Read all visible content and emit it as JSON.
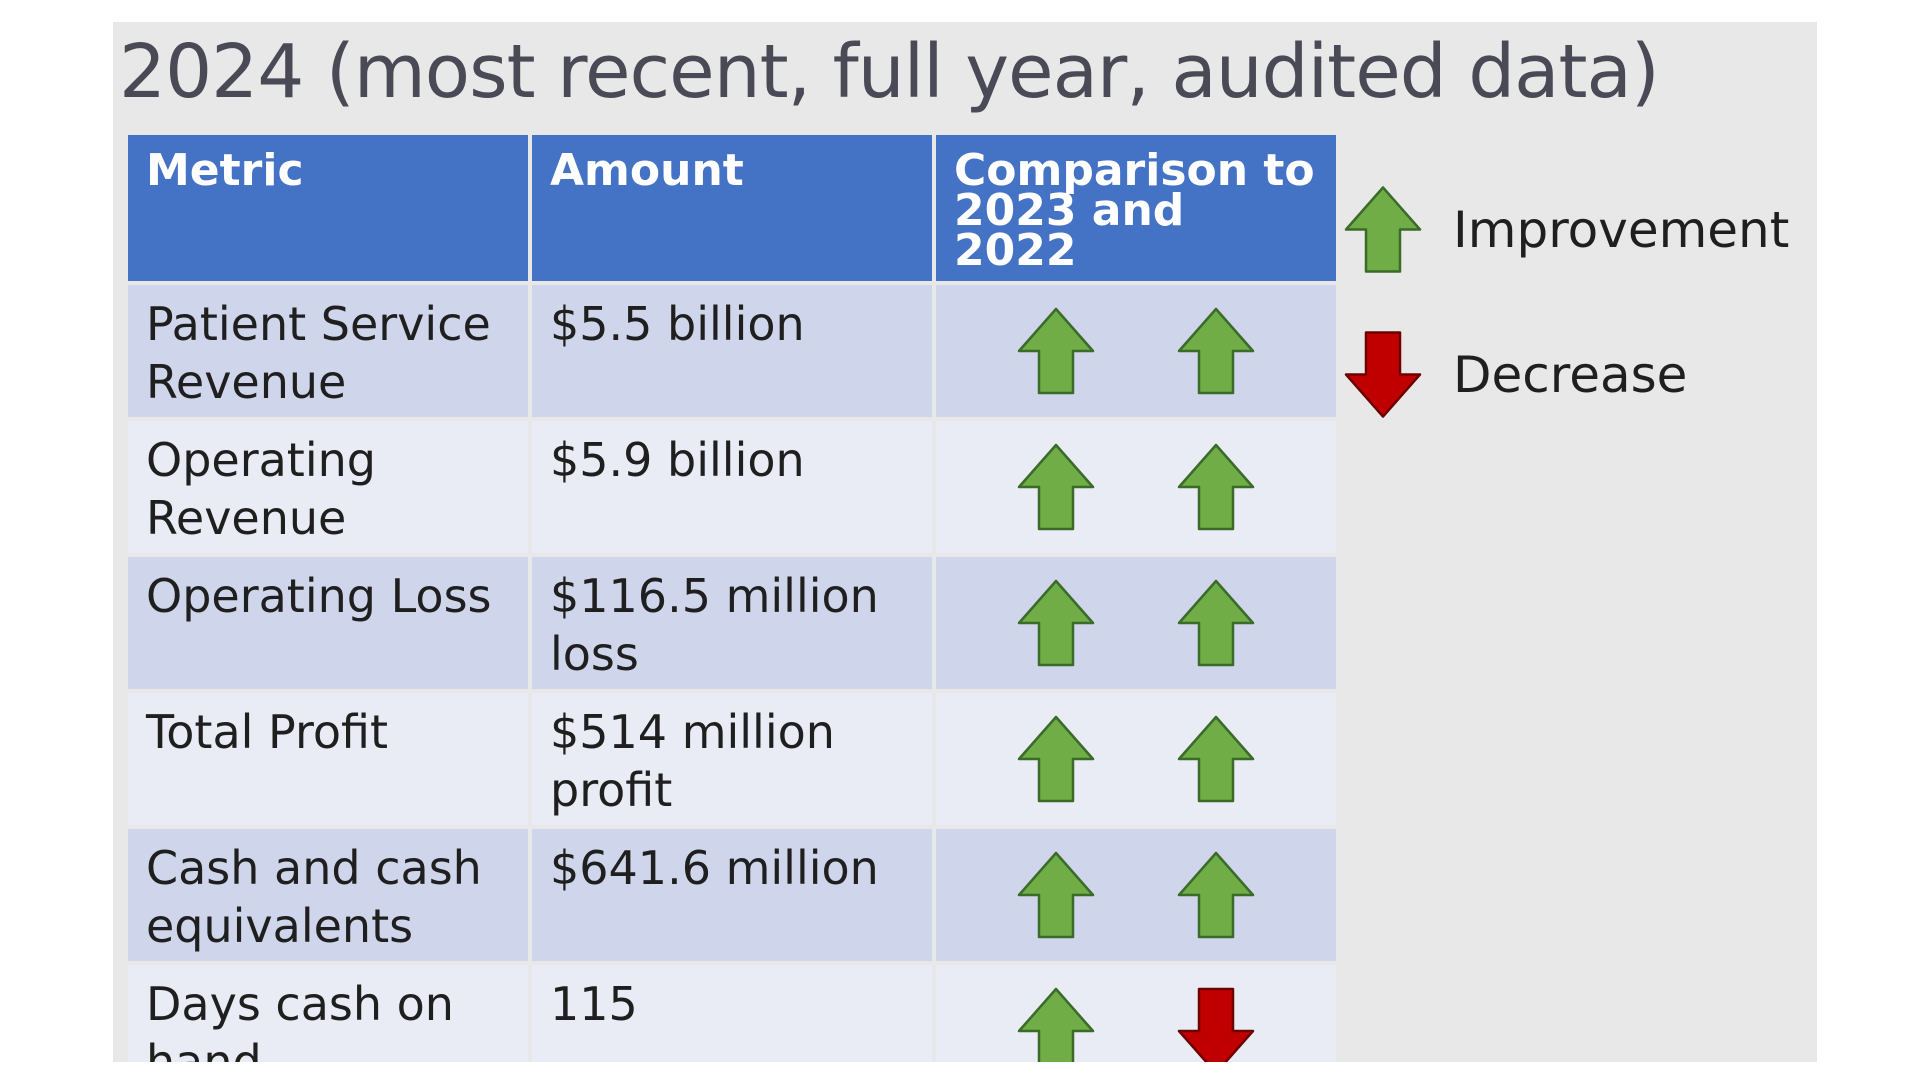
{
  "slide": {
    "title": "2024 (most recent, full year, audited data)"
  },
  "table": {
    "headers": [
      "Metric",
      "Amount",
      "Comparison to 2023 and 2022"
    ],
    "rows": [
      {
        "metric": "Patient Service Revenue",
        "amount": "$5.5 billion",
        "vs2023": "up",
        "vs2022": "up"
      },
      {
        "metric": "Operating Revenue",
        "amount": "$5.9 billion",
        "vs2023": "up",
        "vs2022": "up"
      },
      {
        "metric": "Operating Loss",
        "amount": "$116.5 million loss",
        "vs2023": "up",
        "vs2022": "up"
      },
      {
        "metric": "Total Profit",
        "amount": "$514 million profit",
        "vs2023": "up",
        "vs2022": "up"
      },
      {
        "metric": "Cash and cash equivalents",
        "amount": "$641.6 million",
        "vs2023": "up",
        "vs2022": "up"
      },
      {
        "metric": "Days cash on hand",
        "amount": "115",
        "vs2023": "up",
        "vs2022": "down"
      }
    ]
  },
  "legend": {
    "improvement": {
      "label": "Improvement",
      "icon": "green-up-arrow-icon",
      "color": "#70ad47"
    },
    "decrease": {
      "label": "Decrease",
      "icon": "red-down-arrow-icon",
      "color": "#c00000"
    }
  },
  "colors": {
    "header_bg": "#4472c4",
    "row_odd": "#cfd5ea",
    "row_even": "#e9ebf5",
    "slide_bg": "#e8e8e8",
    "title_text": "#4a4a57"
  }
}
